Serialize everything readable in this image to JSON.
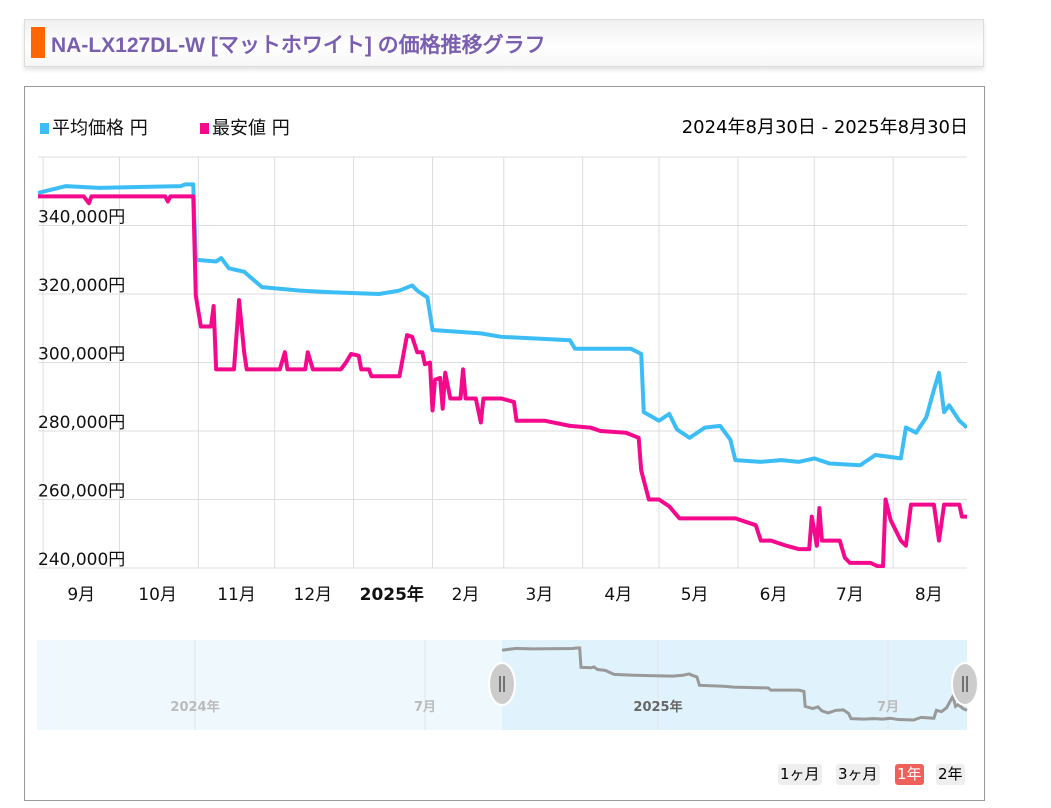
{
  "header": {
    "title": "NA-LX127DL-W [マットホワイト] の価格推移グラフ"
  },
  "legend": [
    {
      "label": "平均価格 円",
      "color": "#3dbdf5"
    },
    {
      "label": "最安値 円",
      "color": "#f5098c"
    }
  ],
  "date_range": "2024年8月30日 - 2025年8月30日",
  "range_buttons": [
    {
      "label": "1ヶ月",
      "active": false
    },
    {
      "label": "3ヶ月",
      "active": false
    },
    {
      "label": "1年",
      "active": true
    },
    {
      "label": "2年",
      "active": false
    }
  ],
  "navigator": {
    "labels": [
      "2024年",
      "7月",
      "2025年",
      "7月"
    ]
  },
  "chart_data": {
    "type": "line",
    "x_unit": "days since 2024-08-30",
    "xlim": [
      0,
      365
    ],
    "ylim": [
      240000,
      360000
    ],
    "yticks": [
      {
        "v": 240000,
        "label": "240,000円"
      },
      {
        "v": 260000,
        "label": "260,000円"
      },
      {
        "v": 280000,
        "label": "280,000円"
      },
      {
        "v": 300000,
        "label": "300,000円"
      },
      {
        "v": 320000,
        "label": "320,000円"
      },
      {
        "v": 340000,
        "label": "340,000円"
      }
    ],
    "xticks": [
      {
        "d": 17,
        "label": "9月"
      },
      {
        "d": 47,
        "label": "10月"
      },
      {
        "d": 78,
        "label": "11月"
      },
      {
        "d": 108,
        "label": "12月"
      },
      {
        "d": 139,
        "label": "2025年",
        "bold": true
      },
      {
        "d": 168,
        "label": "2月"
      },
      {
        "d": 197,
        "label": "3月"
      },
      {
        "d": 228,
        "label": "4月"
      },
      {
        "d": 258,
        "label": "5月"
      },
      {
        "d": 289,
        "label": "6月"
      },
      {
        "d": 319,
        "label": "7月"
      },
      {
        "d": 350,
        "label": "8月"
      }
    ],
    "month_starts": [
      2,
      32,
      63,
      93,
      124,
      155,
      183,
      214,
      244,
      275,
      305,
      336
    ],
    "series": [
      {
        "name": "平均価格",
        "color": "#3dbdf5",
        "points": [
          [
            0,
            349500
          ],
          [
            11,
            351500
          ],
          [
            24,
            351000
          ],
          [
            56,
            351500
          ],
          [
            58,
            352000
          ],
          [
            61,
            352000
          ],
          [
            62,
            330000
          ],
          [
            70,
            329500
          ],
          [
            72,
            330500
          ],
          [
            75,
            327500
          ],
          [
            81,
            326500
          ],
          [
            88,
            322000
          ],
          [
            103,
            321000
          ],
          [
            115,
            320500
          ],
          [
            134,
            320000
          ],
          [
            142,
            321000
          ],
          [
            147,
            322500
          ],
          [
            149,
            321000
          ],
          [
            153,
            319000
          ],
          [
            155,
            309500
          ],
          [
            174,
            308500
          ],
          [
            182,
            307500
          ],
          [
            209,
            306500
          ],
          [
            211,
            304000
          ],
          [
            233,
            304000
          ],
          [
            237,
            302500
          ],
          [
            238,
            285500
          ],
          [
            244,
            283000
          ],
          [
            248,
            285000
          ],
          [
            251,
            280500
          ],
          [
            256,
            278000
          ],
          [
            262,
            281000
          ],
          [
            268,
            281500
          ],
          [
            272,
            277500
          ],
          [
            274,
            271500
          ],
          [
            284,
            271000
          ],
          [
            292,
            271500
          ],
          [
            299,
            271000
          ],
          [
            305,
            272000
          ],
          [
            311,
            270500
          ],
          [
            323,
            270000
          ],
          [
            329,
            273000
          ],
          [
            339,
            272000
          ],
          [
            341,
            281000
          ],
          [
            345,
            279500
          ],
          [
            349,
            284000
          ],
          [
            352,
            292000
          ],
          [
            354,
            297000
          ],
          [
            356,
            285500
          ],
          [
            358,
            287500
          ],
          [
            362,
            283000
          ],
          [
            365,
            281000
          ]
        ]
      },
      {
        "name": "最安値",
        "color": "#f5098c",
        "points": [
          [
            0,
            348500
          ],
          [
            18,
            348500
          ],
          [
            20,
            346500
          ],
          [
            21,
            348500
          ],
          [
            50,
            348500
          ],
          [
            51,
            347000
          ],
          [
            52,
            348500
          ],
          [
            61,
            348500
          ],
          [
            62,
            319500
          ],
          [
            64,
            310500
          ],
          [
            68,
            310500
          ],
          [
            69,
            316500
          ],
          [
            70,
            298000
          ],
          [
            77,
            298000
          ],
          [
            79,
            318200
          ],
          [
            81,
            303000
          ],
          [
            82,
            298000
          ],
          [
            95,
            298000
          ],
          [
            97,
            303000
          ],
          [
            98,
            298000
          ],
          [
            105,
            298000
          ],
          [
            106,
            303000
          ],
          [
            108,
            298000
          ],
          [
            119,
            298000
          ],
          [
            121,
            300000
          ],
          [
            123,
            302500
          ],
          [
            126,
            302000
          ],
          [
            127,
            298000
          ],
          [
            130,
            298000
          ],
          [
            131,
            296000
          ],
          [
            142,
            296000
          ],
          [
            145,
            308000
          ],
          [
            147,
            307500
          ],
          [
            149,
            303000
          ],
          [
            151,
            303000
          ],
          [
            152,
            299500
          ],
          [
            154,
            300000
          ],
          [
            155,
            286000
          ],
          [
            156,
            295000
          ],
          [
            158,
            295500
          ],
          [
            159,
            286500
          ],
          [
            160,
            297000
          ],
          [
            162,
            289500
          ],
          [
            166,
            289500
          ],
          [
            167,
            298000
          ],
          [
            168,
            289500
          ],
          [
            172,
            289500
          ],
          [
            174,
            282500
          ],
          [
            175,
            289500
          ],
          [
            182,
            289500
          ],
          [
            187,
            288500
          ],
          [
            188,
            283000
          ],
          [
            199,
            283000
          ],
          [
            209,
            281500
          ],
          [
            217,
            281000
          ],
          [
            221,
            280000
          ],
          [
            231,
            279500
          ],
          [
            236,
            278000
          ],
          [
            237,
            268500
          ],
          [
            240,
            260000
          ],
          [
            244,
            260000
          ],
          [
            248,
            258000
          ],
          [
            252,
            254500
          ],
          [
            274,
            254500
          ],
          [
            282,
            252500
          ],
          [
            284,
            248000
          ],
          [
            288,
            248000
          ],
          [
            294,
            246500
          ],
          [
            299,
            245500
          ],
          [
            303,
            245500
          ],
          [
            304,
            255000
          ],
          [
            305,
            251000
          ],
          [
            306,
            246500
          ],
          [
            307,
            257500
          ],
          [
            308,
            248000
          ],
          [
            315,
            248000
          ],
          [
            317,
            243000
          ],
          [
            319,
            241500
          ],
          [
            327,
            241500
          ],
          [
            330,
            240500
          ],
          [
            332,
            240500
          ],
          [
            333,
            260000
          ],
          [
            335,
            254000
          ],
          [
            339,
            248000
          ],
          [
            341,
            246500
          ],
          [
            343,
            258500
          ],
          [
            352,
            258500
          ],
          [
            354,
            248000
          ],
          [
            356,
            258500
          ],
          [
            362,
            258500
          ],
          [
            363,
            255000
          ],
          [
            365,
            255000
          ]
        ]
      }
    ]
  }
}
